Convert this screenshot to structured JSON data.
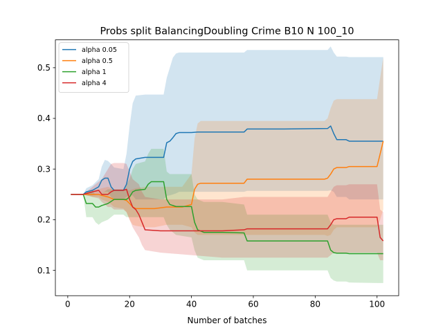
{
  "chart_data": {
    "type": "line",
    "title": "Probs split BalancingDoubling Crime B10 N 100_10",
    "xlabel": "Number of batches",
    "ylabel": "",
    "xlim": [
      -4,
      107
    ],
    "ylim": [
      0.05,
      0.555
    ],
    "x_ticks": [
      0,
      20,
      40,
      60,
      80,
      100
    ],
    "y_ticks": [
      0.1,
      0.2,
      0.3,
      0.4,
      0.5
    ],
    "grid": false,
    "legend_position": "top-left",
    "series": [
      {
        "name": "alpha 0.05",
        "color": "#1f77b4",
        "x": [
          1,
          5,
          6,
          8,
          10,
          11,
          12,
          13,
          14,
          15,
          18,
          19,
          20,
          21,
          22,
          25,
          31,
          32,
          33,
          34,
          35,
          36,
          40,
          42,
          57,
          58,
          70,
          84,
          85,
          86,
          87,
          90,
          91,
          100,
          102
        ],
        "mean": [
          0.25,
          0.25,
          0.255,
          0.258,
          0.265,
          0.278,
          0.282,
          0.282,
          0.265,
          0.258,
          0.258,
          0.27,
          0.3,
          0.315,
          0.32,
          0.323,
          0.323,
          0.352,
          0.355,
          0.362,
          0.37,
          0.372,
          0.372,
          0.373,
          0.373,
          0.379,
          0.379,
          0.38,
          0.385,
          0.37,
          0.358,
          0.358,
          0.355,
          0.355,
          0.355
        ],
        "upper": [
          0.25,
          0.25,
          0.262,
          0.268,
          0.28,
          0.305,
          0.318,
          0.316,
          0.31,
          0.303,
          0.3,
          0.33,
          0.385,
          0.43,
          0.445,
          0.447,
          0.447,
          0.48,
          0.5,
          0.52,
          0.528,
          0.53,
          0.53,
          0.53,
          0.53,
          0.535,
          0.535,
          0.535,
          0.542,
          0.53,
          0.522,
          0.522,
          0.521,
          0.521,
          0.521
        ],
        "lower": [
          0.25,
          0.25,
          0.248,
          0.248,
          0.25,
          0.252,
          0.255,
          0.255,
          0.245,
          0.24,
          0.24,
          0.245,
          0.248,
          0.248,
          0.24,
          0.24,
          0.24,
          0.247,
          0.248,
          0.25,
          0.252,
          0.255,
          0.255,
          0.255,
          0.255,
          0.257,
          0.257,
          0.257,
          0.258,
          0.255,
          0.245,
          0.245,
          0.24,
          0.24,
          0.24
        ]
      },
      {
        "name": "alpha 0.5",
        "color": "#ff7f0e",
        "x": [
          1,
          5,
          8,
          10,
          11,
          13,
          15,
          18,
          19,
          20,
          21,
          22,
          25,
          28,
          32,
          34,
          37,
          40,
          41,
          42,
          43,
          45,
          50,
          57,
          58,
          70,
          83,
          84,
          85,
          86,
          87,
          90,
          91,
          100,
          101,
          102
        ],
        "mean": [
          0.25,
          0.25,
          0.25,
          0.25,
          0.248,
          0.245,
          0.24,
          0.24,
          0.238,
          0.232,
          0.225,
          0.222,
          0.222,
          0.222,
          0.225,
          0.225,
          0.225,
          0.23,
          0.26,
          0.27,
          0.272,
          0.272,
          0.272,
          0.272,
          0.28,
          0.28,
          0.28,
          0.282,
          0.29,
          0.3,
          0.303,
          0.303,
          0.305,
          0.305,
          0.33,
          0.355
        ],
        "upper": [
          0.25,
          0.25,
          0.258,
          0.26,
          0.262,
          0.265,
          0.26,
          0.26,
          0.26,
          0.258,
          0.26,
          0.262,
          0.265,
          0.265,
          0.265,
          0.265,
          0.265,
          0.29,
          0.36,
          0.39,
          0.395,
          0.395,
          0.395,
          0.395,
          0.395,
          0.395,
          0.395,
          0.4,
          0.42,
          0.435,
          0.438,
          0.438,
          0.438,
          0.438,
          0.48,
          0.52
        ],
        "lower": [
          0.25,
          0.25,
          0.245,
          0.245,
          0.24,
          0.235,
          0.225,
          0.222,
          0.215,
          0.2,
          0.19,
          0.188,
          0.185,
          0.185,
          0.19,
          0.19,
          0.19,
          0.185,
          0.175,
          0.17,
          0.17,
          0.17,
          0.17,
          0.17,
          0.17,
          0.17,
          0.17,
          0.168,
          0.17,
          0.18,
          0.185,
          0.185,
          0.185,
          0.185,
          0.2,
          0.22
        ]
      },
      {
        "name": "alpha 1",
        "color": "#2ca02c",
        "x": [
          1,
          5,
          6,
          8,
          9,
          10,
          11,
          13,
          15,
          18,
          19,
          20,
          21,
          22,
          25,
          26,
          27,
          30,
          31,
          32,
          33,
          35,
          40,
          41,
          42,
          44,
          50,
          57,
          58,
          70,
          84,
          85,
          86,
          87,
          90,
          91,
          100,
          102
        ],
        "mean": [
          0.25,
          0.25,
          0.232,
          0.232,
          0.225,
          0.225,
          0.228,
          0.232,
          0.24,
          0.24,
          0.24,
          0.245,
          0.255,
          0.258,
          0.26,
          0.27,
          0.275,
          0.275,
          0.275,
          0.24,
          0.23,
          0.226,
          0.226,
          0.195,
          0.18,
          0.175,
          0.175,
          0.174,
          0.158,
          0.158,
          0.158,
          0.14,
          0.135,
          0.134,
          0.134,
          0.133,
          0.133,
          0.133
        ],
        "upper": [
          0.25,
          0.25,
          0.255,
          0.255,
          0.25,
          0.25,
          0.252,
          0.26,
          0.26,
          0.26,
          0.27,
          0.28,
          0.3,
          0.31,
          0.315,
          0.33,
          0.34,
          0.34,
          0.34,
          0.295,
          0.29,
          0.29,
          0.29,
          0.25,
          0.24,
          0.235,
          0.235,
          0.23,
          0.21,
          0.21,
          0.21,
          0.195,
          0.19,
          0.19,
          0.19,
          0.19,
          0.19,
          0.19
        ],
        "lower": [
          0.25,
          0.25,
          0.205,
          0.205,
          0.195,
          0.19,
          0.195,
          0.2,
          0.21,
          0.21,
          0.205,
          0.205,
          0.205,
          0.205,
          0.205,
          0.205,
          0.205,
          0.205,
          0.205,
          0.19,
          0.18,
          0.17,
          0.165,
          0.14,
          0.125,
          0.12,
          0.12,
          0.12,
          0.1,
          0.1,
          0.1,
          0.085,
          0.08,
          0.078,
          0.078,
          0.076,
          0.075,
          0.075
        ]
      },
      {
        "name": "alpha 4",
        "color": "#d62728",
        "x": [
          1,
          5,
          8,
          10,
          11,
          12,
          13,
          14,
          15,
          18,
          19,
          20,
          21,
          22,
          23,
          24,
          25,
          30,
          40,
          50,
          57,
          58,
          70,
          84,
          85,
          86,
          87,
          90,
          91,
          100,
          101,
          102
        ],
        "mean": [
          0.25,
          0.25,
          0.255,
          0.258,
          0.25,
          0.25,
          0.25,
          0.255,
          0.258,
          0.258,
          0.26,
          0.24,
          0.225,
          0.22,
          0.21,
          0.195,
          0.18,
          0.178,
          0.178,
          0.178,
          0.18,
          0.182,
          0.182,
          0.182,
          0.19,
          0.2,
          0.202,
          0.202,
          0.205,
          0.205,
          0.165,
          0.158
        ],
        "upper": [
          0.25,
          0.25,
          0.265,
          0.275,
          0.28,
          0.29,
          0.3,
          0.31,
          0.312,
          0.312,
          0.31,
          0.295,
          0.28,
          0.275,
          0.27,
          0.255,
          0.245,
          0.24,
          0.24,
          0.24,
          0.245,
          0.245,
          0.245,
          0.245,
          0.255,
          0.265,
          0.268,
          0.268,
          0.27,
          0.27,
          0.22,
          0.215
        ],
        "lower": [
          0.25,
          0.25,
          0.245,
          0.242,
          0.235,
          0.23,
          0.225,
          0.225,
          0.22,
          0.22,
          0.215,
          0.2,
          0.185,
          0.175,
          0.165,
          0.15,
          0.14,
          0.135,
          0.13,
          0.125,
          0.125,
          0.125,
          0.125,
          0.125,
          0.13,
          0.135,
          0.135,
          0.135,
          0.135,
          0.135,
          0.12,
          0.12
        ]
      }
    ]
  }
}
